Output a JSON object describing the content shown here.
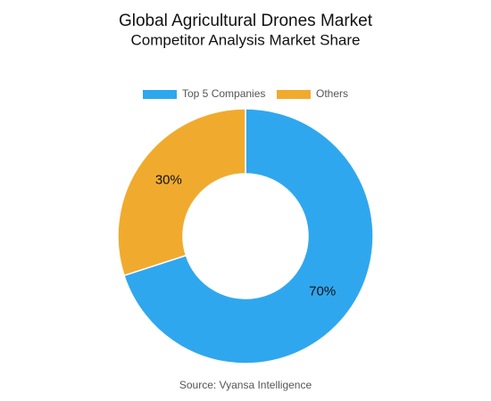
{
  "chart_data": {
    "type": "pie",
    "title": "Global Agricultural Drones Market",
    "subtitle": "Competitor Analysis Market Share",
    "categories": [
      "Top 5 Companies",
      "Others"
    ],
    "values": [
      70,
      30
    ],
    "value_labels": [
      "70%",
      "30%"
    ],
    "colors": [
      "#2fa7ee",
      "#f0ab2e"
    ],
    "donut": true,
    "legend": "top",
    "source": "Source: Vyansa Intelligence"
  }
}
